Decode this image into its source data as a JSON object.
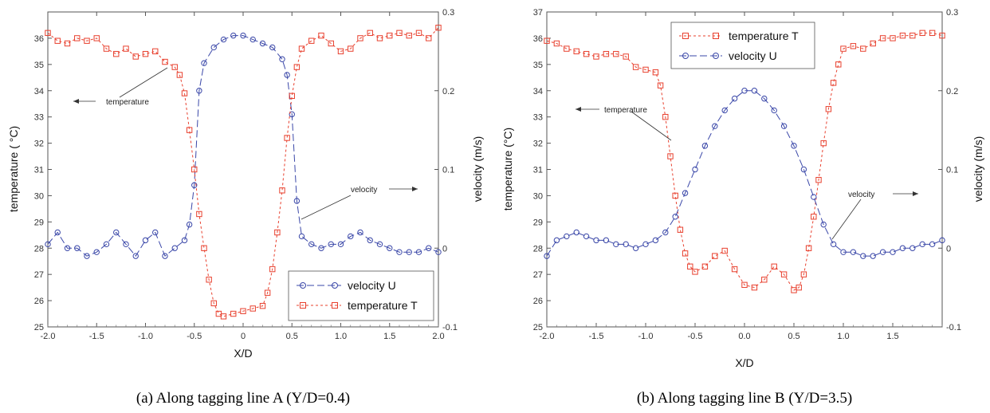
{
  "colors": {
    "temperature": "#e8402e",
    "velocity": "#3a47a8"
  },
  "chart_data": [
    {
      "type": "line",
      "caption": "(a) Along tagging line A (Y/D=0.4)",
      "xlabel": "X/D",
      "ylabel_left": "temperature ( °C)",
      "ylabel_right": "velocity (m/s)",
      "xlim": [
        -2.0,
        2.0
      ],
      "ylim_left": [
        25,
        37
      ],
      "ylim_right": [
        -0.1,
        0.3
      ],
      "x_ticks": [
        "-2.0",
        "-1.5",
        "-1.0",
        "-0.5",
        "0",
        "0.5",
        "1.0",
        "1.5",
        "2.0"
      ],
      "y_ticks_left": [
        "25",
        "26",
        "27",
        "28",
        "29",
        "30",
        "31",
        "32",
        "33",
        "34",
        "35",
        "36"
      ],
      "y_ticks_right": [
        "-0.1",
        "0",
        "0.1",
        "0.2",
        "0.3"
      ],
      "legend": {
        "position": "bottom-right",
        "entries": [
          "velocity  U",
          "temperature T"
        ]
      },
      "annotations": [
        {
          "text": "temperature",
          "arrow": "left"
        },
        {
          "text": "velocity",
          "arrow": "right"
        }
      ],
      "series": [
        {
          "name": "velocity  U",
          "axis": "right",
          "marker": "circle",
          "x": [
            -2.0,
            -1.9,
            -1.8,
            -1.7,
            -1.6,
            -1.5,
            -1.4,
            -1.3,
            -1.2,
            -1.1,
            -1.0,
            -0.9,
            -0.8,
            -0.7,
            -0.6,
            -0.55,
            -0.5,
            -0.45,
            -0.4,
            -0.3,
            -0.2,
            -0.1,
            0.0,
            0.1,
            0.2,
            0.3,
            0.4,
            0.45,
            0.5,
            0.55,
            0.6,
            0.7,
            0.8,
            0.9,
            1.0,
            1.1,
            1.2,
            1.3,
            1.4,
            1.5,
            1.6,
            1.7,
            1.8,
            1.9,
            2.0
          ],
          "y": [
            0.005,
            0.02,
            0.0,
            0.0,
            -0.01,
            -0.005,
            0.005,
            0.02,
            0.005,
            -0.01,
            0.01,
            0.02,
            -0.01,
            0.0,
            0.01,
            0.03,
            0.08,
            0.2,
            0.235,
            0.255,
            0.265,
            0.27,
            0.27,
            0.265,
            0.26,
            0.255,
            0.24,
            0.22,
            0.17,
            0.06,
            0.015,
            0.005,
            0.0,
            0.005,
            0.005,
            0.015,
            0.02,
            0.01,
            0.005,
            0.0,
            -0.005,
            -0.005,
            -0.005,
            0.0,
            -0.005
          ]
        },
        {
          "name": "temperature T",
          "axis": "left",
          "marker": "square",
          "x": [
            -2.0,
            -1.9,
            -1.8,
            -1.7,
            -1.6,
            -1.5,
            -1.4,
            -1.3,
            -1.2,
            -1.1,
            -1.0,
            -0.9,
            -0.8,
            -0.7,
            -0.65,
            -0.6,
            -0.55,
            -0.5,
            -0.45,
            -0.4,
            -0.35,
            -0.3,
            -0.25,
            -0.2,
            -0.1,
            0.0,
            0.1,
            0.2,
            0.25,
            0.3,
            0.35,
            0.4,
            0.45,
            0.5,
            0.55,
            0.6,
            0.7,
            0.8,
            0.9,
            1.0,
            1.1,
            1.2,
            1.3,
            1.4,
            1.5,
            1.6,
            1.7,
            1.8,
            1.9,
            2.0
          ],
          "y": [
            36.2,
            35.9,
            35.8,
            36.0,
            35.9,
            36.0,
            35.6,
            35.4,
            35.6,
            35.3,
            35.4,
            35.5,
            35.1,
            34.9,
            34.6,
            33.9,
            32.5,
            31.0,
            29.3,
            28.0,
            26.8,
            25.9,
            25.5,
            25.4,
            25.5,
            25.6,
            25.7,
            25.8,
            26.3,
            27.2,
            28.6,
            30.2,
            32.2,
            33.8,
            34.9,
            35.6,
            35.9,
            36.1,
            35.8,
            35.5,
            35.6,
            36.0,
            36.2,
            36.0,
            36.1,
            36.2,
            36.1,
            36.2,
            36.0,
            36.4
          ]
        }
      ]
    },
    {
      "type": "line",
      "caption": "(b) Along tagging line B (Y/D=3.5)",
      "xlabel": "X/D",
      "ylabel_left": "temperature (°C)",
      "ylabel_right": "velocity (m/s)",
      "xlim": [
        -2.0,
        2.0
      ],
      "ylim_left": [
        25,
        37
      ],
      "ylim_right": [
        -0.1,
        0.3
      ],
      "x_ticks": [
        "-2.0",
        "-1.5",
        "-1.0",
        "-0.5",
        "0.0",
        "0.5",
        "1.0",
        "1.5"
      ],
      "y_ticks_left": [
        "25",
        "26",
        "27",
        "28",
        "29",
        "30",
        "31",
        "32",
        "33",
        "34",
        "35",
        "36",
        "37"
      ],
      "y_ticks_right": [
        "-0.1",
        "0",
        "0.1",
        "0.2",
        "0.3"
      ],
      "legend": {
        "position": "top-center",
        "entries": [
          "temperature T",
          "velocity  U"
        ]
      },
      "annotations": [
        {
          "text": "temperature",
          "arrow": "left"
        },
        {
          "text": "velocity",
          "arrow": "right"
        }
      ],
      "series": [
        {
          "name": "temperature T",
          "axis": "left",
          "marker": "square",
          "x": [
            -2.0,
            -1.9,
            -1.8,
            -1.7,
            -1.6,
            -1.5,
            -1.4,
            -1.3,
            -1.2,
            -1.1,
            -1.0,
            -0.9,
            -0.85,
            -0.8,
            -0.75,
            -0.7,
            -0.65,
            -0.6,
            -0.55,
            -0.5,
            -0.4,
            -0.3,
            -0.2,
            -0.1,
            0.0,
            0.1,
            0.2,
            0.3,
            0.4,
            0.5,
            0.55,
            0.6,
            0.65,
            0.7,
            0.75,
            0.8,
            0.85,
            0.9,
            0.95,
            1.0,
            1.1,
            1.2,
            1.3,
            1.4,
            1.5,
            1.6,
            1.7,
            1.8,
            1.9,
            2.0
          ],
          "y": [
            35.9,
            35.8,
            35.6,
            35.5,
            35.4,
            35.3,
            35.4,
            35.4,
            35.3,
            34.9,
            34.8,
            34.7,
            34.2,
            33.0,
            31.5,
            30.0,
            28.7,
            27.8,
            27.3,
            27.1,
            27.3,
            27.7,
            27.9,
            27.2,
            26.6,
            26.5,
            26.8,
            27.3,
            27.0,
            26.4,
            26.5,
            27.0,
            28.0,
            29.2,
            30.6,
            32.0,
            33.3,
            34.3,
            35.0,
            35.6,
            35.7,
            35.6,
            35.8,
            36.0,
            36.0,
            36.1,
            36.1,
            36.2,
            36.2,
            36.1
          ]
        },
        {
          "name": "velocity  U",
          "axis": "right",
          "marker": "circle",
          "x": [
            -2.0,
            -1.9,
            -1.8,
            -1.7,
            -1.6,
            -1.5,
            -1.4,
            -1.3,
            -1.2,
            -1.1,
            -1.0,
            -0.9,
            -0.8,
            -0.7,
            -0.6,
            -0.5,
            -0.4,
            -0.3,
            -0.2,
            -0.1,
            0.0,
            0.1,
            0.2,
            0.3,
            0.4,
            0.5,
            0.6,
            0.7,
            0.8,
            0.9,
            1.0,
            1.1,
            1.2,
            1.3,
            1.4,
            1.5,
            1.6,
            1.7,
            1.8,
            1.9,
            2.0
          ],
          "y": [
            -0.01,
            0.01,
            0.015,
            0.02,
            0.015,
            0.01,
            0.01,
            0.005,
            0.005,
            0.0,
            0.005,
            0.01,
            0.02,
            0.04,
            0.07,
            0.1,
            0.13,
            0.155,
            0.175,
            0.19,
            0.2,
            0.2,
            0.19,
            0.175,
            0.155,
            0.13,
            0.1,
            0.065,
            0.03,
            0.005,
            -0.005,
            -0.005,
            -0.01,
            -0.01,
            -0.005,
            -0.005,
            0.0,
            0.0,
            0.005,
            0.005,
            0.01
          ]
        }
      ]
    }
  ]
}
